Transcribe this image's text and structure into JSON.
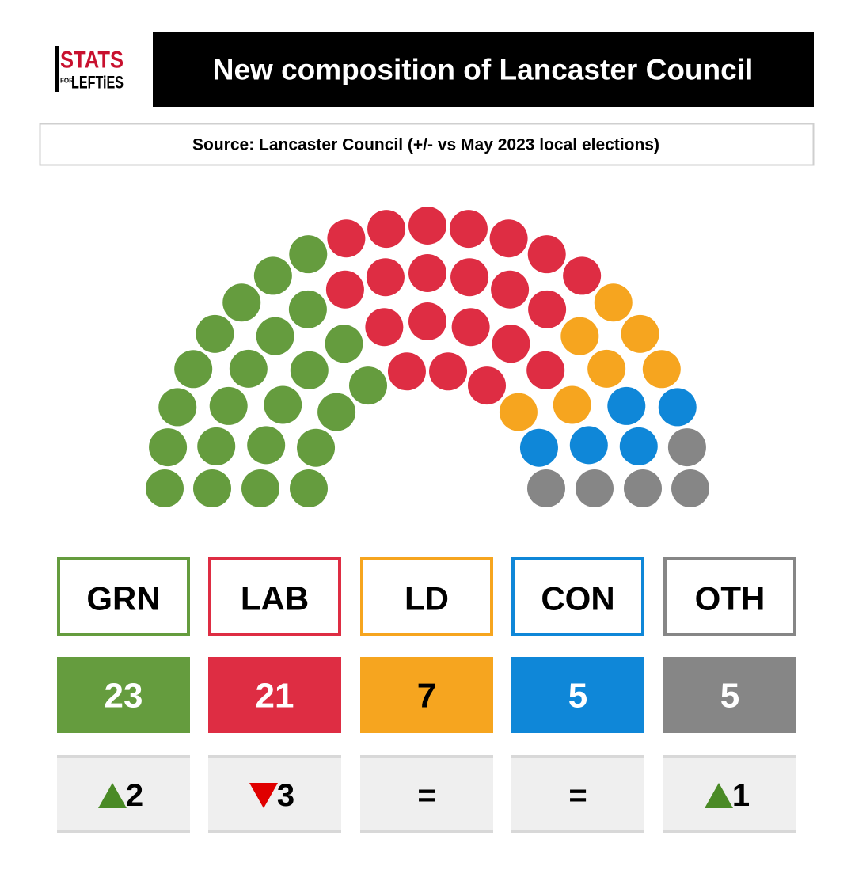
{
  "chart_data": {
    "type": "parliament",
    "logo": [
      "STATS",
      "FOR",
      "LEFTiES"
    ],
    "title": "New composition of Lancaster Council",
    "subtitle": "Source: Lancaster Council (+/- vs May 2023 local elections)",
    "categories": [
      "GRN",
      "LAB",
      "LD",
      "CON",
      "OTH"
    ],
    "values": [
      23,
      21,
      7,
      5,
      5
    ],
    "colors": [
      "#659c3e",
      "#de2d43",
      "#f6a51f",
      "#0f87d8",
      "#868686"
    ],
    "value_text_colors": [
      "#ffffff",
      "#ffffff",
      "#000000",
      "#ffffff",
      "#ffffff"
    ],
    "changes": [
      2,
      -3,
      0,
      0,
      1
    ],
    "change_labels": [
      "2",
      "3",
      "=",
      "=",
      "1"
    ],
    "up_color": "#4a8a26",
    "down_color": "#e00000"
  }
}
